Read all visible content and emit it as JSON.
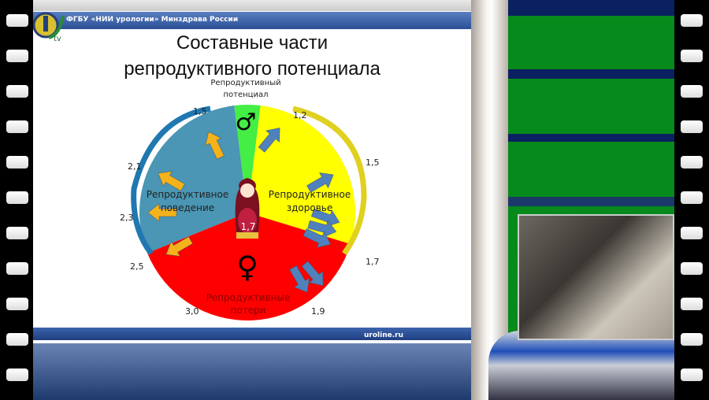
{
  "header": {
    "org": "ФГБУ «НИИ урологии» Минздрава России",
    "logo_text": "tv"
  },
  "slide": {
    "title_line1": "Составные части",
    "title_line2": "репродуктивного потенциала",
    "center_label_line1": "Репродуктивный",
    "center_label_line2": "потенциал",
    "center_value": "1,7",
    "footer_url": "uroline.ru"
  },
  "diagram": {
    "segments": [
      {
        "label_line1": "Репродуктивное",
        "label_line2": "поведение",
        "color": "#4a96b4"
      },
      {
        "label_line1": "Репродуктивное",
        "label_line2": "здоровье",
        "color": "#ffff00"
      },
      {
        "label_line1": "Репродуктивные",
        "label_line2": "потери",
        "color": "#ff0000"
      },
      {
        "label_line1": "",
        "label_line2": "",
        "color": "#44ee44"
      }
    ],
    "symbols": {
      "male": "♂",
      "female": "♀"
    },
    "values": [
      "1,5",
      "1,2",
      "1,5",
      "1,7",
      "1,9",
      "3,0",
      "2,5",
      "2,3",
      "2,1"
    ],
    "arrow_colors": {
      "behavior": "#f5b21a",
      "health_losses": "#4f81bd"
    }
  },
  "colors": {
    "header_bar": "#3b5fa8",
    "studio_green": "#078a1c"
  }
}
